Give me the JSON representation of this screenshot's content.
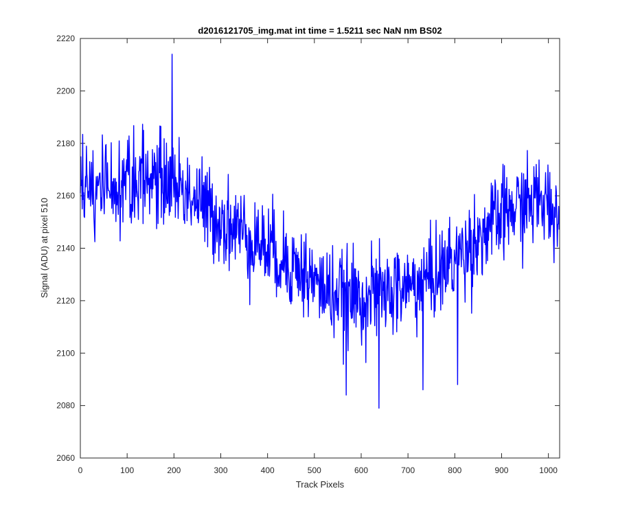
{
  "chart_data": {
    "type": "line",
    "title": "d2016121705_img.mat int time = 1.5211 sec  NaN nm BS02",
    "xlabel": "Track Pixels",
    "ylabel": "Signal (ADU) at pixel 510",
    "xlim": [
      0,
      1024
    ],
    "ylim": [
      2060,
      2220
    ],
    "xticks": [
      0,
      100,
      200,
      300,
      400,
      500,
      600,
      700,
      800,
      900,
      1000
    ],
    "yticks": [
      2060,
      2080,
      2100,
      2120,
      2140,
      2160,
      2180,
      2200,
      2220
    ],
    "xtick_labels": [
      "0",
      "100",
      "200",
      "300",
      "400",
      "500",
      "600",
      "700",
      "800",
      "900",
      "1000"
    ],
    "ytick_labels": [
      "2060",
      "2080",
      "2100",
      "2120",
      "2140",
      "2160",
      "2180",
      "2200",
      "2220"
    ],
    "grid": false,
    "line_color": "#0000ff",
    "series": [
      {
        "x": [
          0,
          25,
          50,
          75,
          100,
          125,
          150,
          175,
          200,
          225,
          250,
          275,
          300,
          325,
          350,
          375,
          400,
          425,
          450,
          475,
          500,
          525,
          550,
          575,
          600,
          625,
          650,
          675,
          700,
          725,
          750,
          775,
          800,
          825,
          850,
          875,
          900,
          925,
          950,
          975,
          1000,
          1023
        ],
        "values": [
          2160,
          2162,
          2163,
          2164,
          2166,
          2167,
          2167,
          2166,
          2165,
          2162,
          2158,
          2154,
          2151,
          2148,
          2146,
          2143,
          2140,
          2137,
          2134,
          2131,
          2127,
          2124,
          2122,
          2121,
          2121,
          2122,
          2123,
          2124,
          2125,
          2127,
          2129,
          2132,
          2136,
          2140,
          2144,
          2148,
          2152,
          2155,
          2157,
          2158,
          2157,
          2152
        ]
      }
    ],
    "notable_points": [
      {
        "x": 196,
        "y": 2214
      },
      {
        "x": 638,
        "y": 2079
      },
      {
        "x": 568,
        "y": 2084
      },
      {
        "x": 732,
        "y": 2086
      },
      {
        "x": 806,
        "y": 2088
      }
    ]
  }
}
